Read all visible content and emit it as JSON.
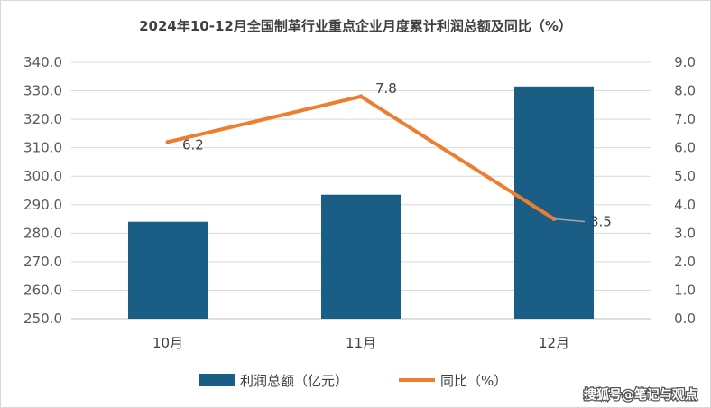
{
  "chart_data": {
    "type": "bar+line",
    "title": "2024年10-12月全国制革行业重点企业月度累计利润总额及同比（%）",
    "categories": [
      "10月",
      "11月",
      "12月"
    ],
    "series": [
      {
        "name": "利润总额（亿元）",
        "type": "bar",
        "axis": "left",
        "values": [
          284.0,
          293.5,
          331.5
        ]
      },
      {
        "name": "同比（%）",
        "type": "line",
        "axis": "right",
        "values": [
          6.2,
          7.8,
          3.5
        ],
        "data_labels": [
          "6.2",
          "7.8",
          "3.5"
        ]
      }
    ],
    "y_left": {
      "min": 250,
      "max": 340,
      "step": 10,
      "tick_labels": [
        "250.0",
        "260.0",
        "270.0",
        "280.0",
        "290.0",
        "300.0",
        "310.0",
        "320.0",
        "330.0",
        "340.0"
      ]
    },
    "y_right": {
      "min": 0,
      "max": 9,
      "step": 1,
      "tick_labels": [
        "0.0",
        "1.0",
        "2.0",
        "3.0",
        "4.0",
        "5.0",
        "6.0",
        "7.0",
        "8.0",
        "9.0"
      ]
    },
    "grid": true,
    "legend": "bottom",
    "colors": {
      "bar": "#1a5e86",
      "line": "#ed7d31",
      "grid": "#d9d9d9",
      "leader": "#a6a6a6"
    }
  },
  "watermark": "搜狐号@笔记与观点"
}
